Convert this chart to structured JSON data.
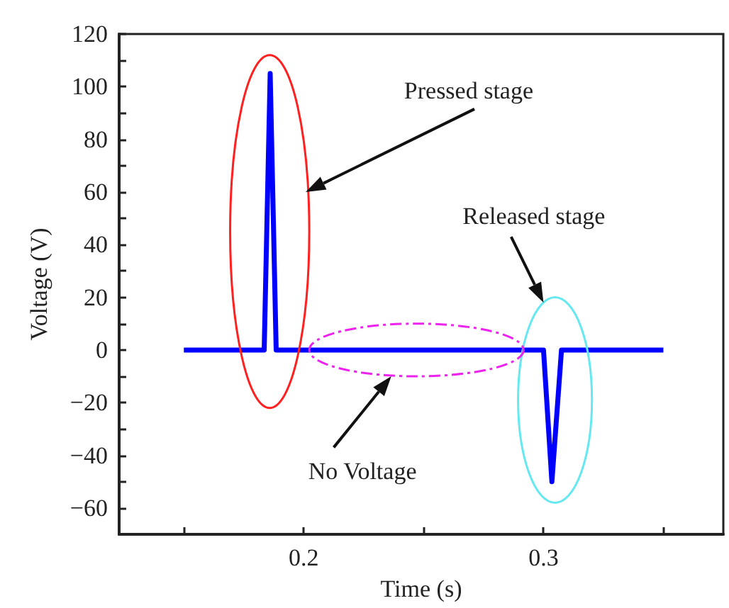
{
  "chart_data": {
    "type": "line",
    "xlabel": "Time (s)",
    "ylabel": "Voltage (V)",
    "xlim": [
      0.123,
      0.375
    ],
    "ylim": [
      -70,
      120
    ],
    "xticks": [
      {
        "value": 0.15,
        "label": null
      },
      0.2,
      {
        "value": 0.25,
        "label": null
      },
      0.3,
      {
        "value": 0.35,
        "label": null
      }
    ],
    "yticks": [
      -60,
      {
        "value": -50,
        "label": null
      },
      -40,
      {
        "value": -30,
        "label": null
      },
      -20,
      {
        "value": -10,
        "label": null
      },
      0,
      {
        "value": 10,
        "label": null
      },
      20,
      {
        "value": 30,
        "label": null
      },
      40,
      {
        "value": 50,
        "label": null
      },
      60,
      {
        "value": 70,
        "label": null
      },
      80,
      {
        "value": 90,
        "label": null
      },
      100,
      {
        "value": 110,
        "label": null
      },
      120
    ],
    "grid": false,
    "marker": "none",
    "line_style": "solid",
    "series": [
      {
        "color": "#0000ff",
        "x": [
          0.15,
          0.16,
          0.17,
          0.18,
          0.1835,
          0.186,
          0.1885,
          0.19,
          0.2,
          0.22,
          0.24,
          0.26,
          0.28,
          0.298,
          0.3,
          0.3035,
          0.3075,
          0.31,
          0.32,
          0.33,
          0.34,
          0.35
        ],
        "values": [
          0,
          0,
          0,
          0,
          0,
          105,
          0,
          0,
          0,
          0,
          0,
          0,
          0,
          0,
          0,
          -50,
          0,
          0,
          0,
          0,
          0,
          0
        ]
      }
    ],
    "annotations": [
      "Pressed stage",
      "Released stage",
      "No Voltage"
    ]
  }
}
